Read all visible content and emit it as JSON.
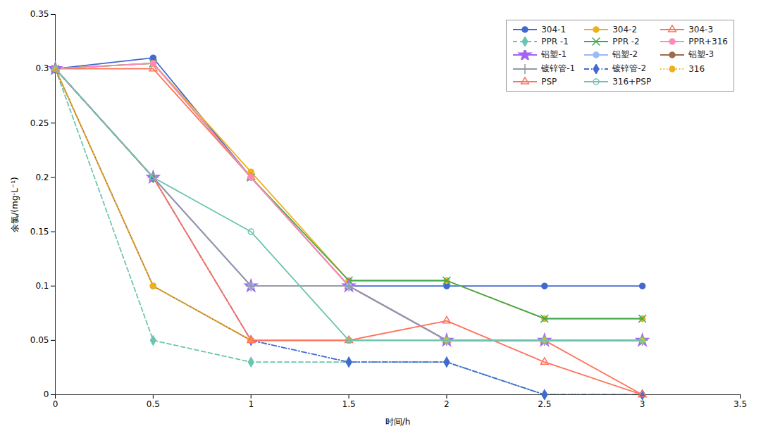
{
  "chart_data": {
    "type": "line",
    "xlabel": "时间/h",
    "ylabel": "余氯/(mg·L⁻¹)",
    "x": [
      0,
      0.5,
      1.0,
      1.5,
      2.0,
      2.5,
      3.0
    ],
    "series": [
      {
        "name": "304-1",
        "values": [
          0.3,
          0.31,
          0.2,
          0.1,
          0.1,
          0.1,
          0.1
        ],
        "marker": "circle",
        "line_style": "solid"
      },
      {
        "name": "304-2",
        "values": [
          0.3,
          0.305,
          0.205,
          0.105,
          0.105,
          0.07,
          0.07
        ],
        "marker": "circle",
        "line_style": "solid"
      },
      {
        "name": "304-3",
        "values": [
          0.3,
          0.3,
          0.2,
          0.1,
          0.05,
          0.05,
          0.0
        ],
        "marker": "triangle-open",
        "line_style": "solid"
      },
      {
        "name": "PPR -1",
        "values": [
          0.3,
          0.05,
          0.03,
          0.03,
          0.03,
          0.0,
          0.0
        ],
        "marker": "diamond",
        "line_style": "dashed"
      },
      {
        "name": "PPR -2",
        "values": [
          0.3,
          0.305,
          0.2,
          0.105,
          0.105,
          0.07,
          0.07
        ],
        "marker": "times",
        "line_style": "solid"
      },
      {
        "name": "PPR+316",
        "values": [
          0.3,
          0.305,
          0.2,
          0.1,
          0.05,
          0.05,
          0.05
        ],
        "marker": "circle",
        "line_style": "solid"
      },
      {
        "name": "铝塑-1",
        "values": [
          0.3,
          0.2,
          0.1,
          0.1,
          0.05,
          0.05,
          0.05
        ],
        "marker": "star",
        "line_style": "solid"
      },
      {
        "name": "铝塑-2",
        "values": [
          0.3,
          0.2,
          0.1,
          0.1,
          0.05,
          0.05,
          0.05
        ],
        "marker": "circle",
        "line_style": "solid"
      },
      {
        "name": "铝塑-3",
        "values": [
          0.3,
          0.1,
          0.05,
          0.05,
          0.05,
          0.05,
          0.05
        ],
        "marker": "circle",
        "line_style": "solid"
      },
      {
        "name": "镀锌管-1",
        "values": [
          0.3,
          0.2,
          0.1,
          0.1,
          0.05,
          0.05,
          0.05
        ],
        "marker": "plus",
        "line_style": "solid"
      },
      {
        "name": "镀锌管-2",
        "values": [
          0.3,
          0.2,
          0.05,
          0.03,
          0.03,
          0.0,
          0.0
        ],
        "marker": "diamond",
        "line_style": "dashdot"
      },
      {
        "name": "316",
        "values": [
          0.3,
          0.1,
          0.05,
          0.05,
          0.05,
          0.05,
          0.05
        ],
        "marker": "circle",
        "line_style": "dotted"
      },
      {
        "name": "PSP",
        "values": [
          0.3,
          0.2,
          0.05,
          0.05,
          0.068,
          0.03,
          0.0
        ],
        "marker": "triangle-open",
        "line_style": "solid"
      },
      {
        "name": "316+PSP",
        "values": [
          0.3,
          0.2,
          0.15,
          0.05,
          0.05,
          0.05,
          0.05
        ],
        "marker": "circle-open",
        "line_style": "solid"
      }
    ],
    "xlim": [
      0,
      3.5
    ],
    "ylim": [
      0,
      0.35
    ],
    "xticks": [
      0,
      0.5,
      1.0,
      1.5,
      2.0,
      2.5,
      3.0,
      3.5
    ],
    "yticks": [
      0,
      0.05,
      0.1,
      0.15,
      0.2,
      0.25,
      0.3,
      0.35
    ],
    "legend": "upper right"
  }
}
